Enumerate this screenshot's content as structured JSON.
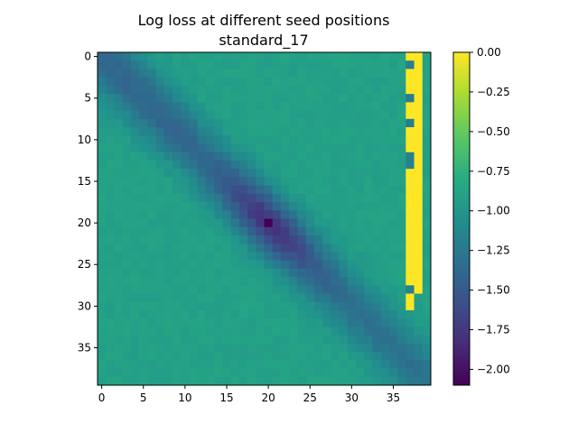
{
  "chart_data": {
    "type": "heatmap",
    "title_line1": "Log loss at different seed positions",
    "title_line2": "standard_17",
    "xlabel": "",
    "ylabel": "",
    "rows": 40,
    "cols": 40,
    "x_range": [
      -0.5,
      39.5
    ],
    "y_range": [
      -0.5,
      39.5
    ],
    "y_axis_inverted": true,
    "xticks": [
      0,
      5,
      10,
      15,
      20,
      25,
      30,
      35
    ],
    "yticks": [
      0,
      5,
      10,
      15,
      20,
      25,
      30,
      35
    ],
    "colormap": "viridis",
    "vmin": -2.1,
    "vmax": 0.0,
    "colorbar_ticks": [
      0.0,
      -0.25,
      -0.5,
      -0.75,
      -1.0,
      -1.25,
      -1.5,
      -1.75,
      -2.0
    ],
    "colorbar_tick_labels": [
      "0.00",
      "−0.25",
      "−0.50",
      "−0.75",
      "−1.00",
      "−1.25",
      "−1.50",
      "−1.75",
      "−2.00"
    ],
    "background_value": -0.9,
    "diagonal_band": {
      "description": "low-loss band along row ≈ column",
      "center_value_at_midpoint": -1.35,
      "minimum": {
        "row": 20,
        "col": 20,
        "value": -2.1
      }
    },
    "saturated_column": {
      "cols": [
        37,
        38
      ],
      "rows_start": 0,
      "rows_end": 30,
      "value": 0.0,
      "gaps": [
        [
          1,
          37
        ],
        [
          5,
          37
        ],
        [
          8,
          37
        ],
        [
          12,
          37
        ],
        [
          13,
          37
        ],
        [
          28,
          37
        ]
      ]
    }
  }
}
